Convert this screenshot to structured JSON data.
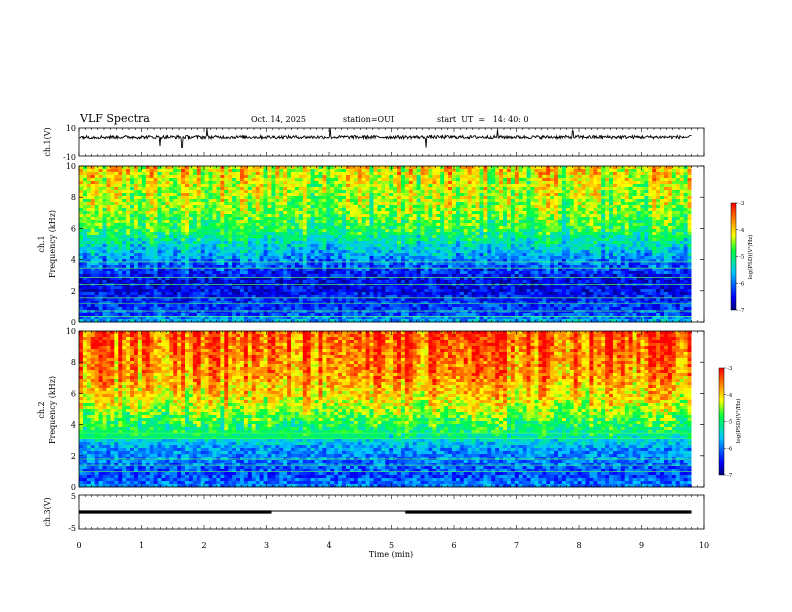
{
  "header": {
    "title": "VLF Spectra",
    "date": "Oct. 14, 2025",
    "station": "station=OUI",
    "start": "start  UT  =   14: 40: 0"
  },
  "chart_data": [
    {
      "type": "line",
      "name": "ch1-waveform",
      "ylabel": "ch.1(V)",
      "ylim": [
        -10,
        10
      ],
      "yticks": [
        "10",
        "-10"
      ],
      "baseline": 3.5,
      "spikes": [
        {
          "x": 1.3,
          "y": -3
        },
        {
          "x": 1.65,
          "y": -4
        },
        {
          "x": 2.05,
          "y": 10
        },
        {
          "x": 4.02,
          "y": 10
        },
        {
          "x": 5.55,
          "y": -4
        },
        {
          "x": 6.7,
          "y": 9
        },
        {
          "x": 7.9,
          "y": 8
        }
      ]
    },
    {
      "type": "heatmap",
      "name": "ch1-spectrogram",
      "ylabel": "ch.1",
      "ylabel2": "Frequency (kHz)",
      "ylim": [
        0,
        10
      ],
      "yticks": [
        "0",
        "2",
        "4",
        "6",
        "8",
        "10"
      ],
      "xlim": [
        0,
        10
      ],
      "data_xmax": 9.8,
      "colorbar": {
        "range": [
          -7,
          -3
        ],
        "ticks": [
          "-3",
          "-4",
          "-5",
          "-6",
          "-7"
        ],
        "label": "log(PSD)(V²/Hz)"
      },
      "profile_kHz_to_logpsd": [
        [
          0.0,
          -5.6
        ],
        [
          0.5,
          -6.2
        ],
        [
          1.5,
          -6.4
        ],
        [
          2.5,
          -6.6
        ],
        [
          3.3,
          -6.4
        ],
        [
          4.0,
          -6.0
        ],
        [
          5.0,
          -5.5
        ],
        [
          6.0,
          -5.0
        ],
        [
          7.5,
          -4.7
        ],
        [
          10.0,
          -4.4
        ]
      ],
      "emission_lines_kHz": [
        0.35,
        0.7,
        1.2,
        1.55,
        2.4,
        2.85,
        3.45,
        3.85
      ]
    },
    {
      "type": "heatmap",
      "name": "ch2-spectrogram",
      "ylabel": "ch.2",
      "ylabel2": "Frequency (kHz)",
      "ylim": [
        0,
        10
      ],
      "yticks": [
        "0",
        "2",
        "4",
        "6",
        "8",
        "10"
      ],
      "xlim": [
        0,
        10
      ],
      "data_xmax": 9.8,
      "colorbar": {
        "range": [
          -7,
          -3
        ],
        "ticks": [
          "-3",
          "-4",
          "-5",
          "-6",
          "-7"
        ],
        "label": "log(PSD)(V²/Hz)"
      },
      "profile_kHz_to_logpsd": [
        [
          0.0,
          -5.9
        ],
        [
          0.8,
          -6.2
        ],
        [
          1.5,
          -6.0
        ],
        [
          2.5,
          -5.8
        ],
        [
          3.3,
          -5.2
        ],
        [
          4.2,
          -4.9
        ],
        [
          5.5,
          -4.3
        ],
        [
          7.0,
          -3.9
        ],
        [
          10.0,
          -3.6
        ]
      ],
      "emission_lines_kHz": [
        1.0,
        1.4,
        1.8,
        3.1,
        3.45
      ]
    },
    {
      "type": "line",
      "name": "ch3-waveform",
      "ylabel": "ch.3(V)",
      "ylim": [
        -5,
        5
      ],
      "yticks": [
        "5",
        "-5"
      ],
      "segments": [
        {
          "x0": 0.0,
          "x1": 3.08,
          "y": 0.0
        },
        {
          "x0": 3.08,
          "x1": 5.22,
          "y": 0.3
        },
        {
          "x0": 5.22,
          "x1": 9.8,
          "y": 0.0
        }
      ]
    }
  ],
  "x_axis": {
    "label": "Time (min)",
    "ticks": [
      "0",
      "1",
      "2",
      "3",
      "4",
      "5",
      "6",
      "7",
      "8",
      "9",
      "10"
    ]
  }
}
